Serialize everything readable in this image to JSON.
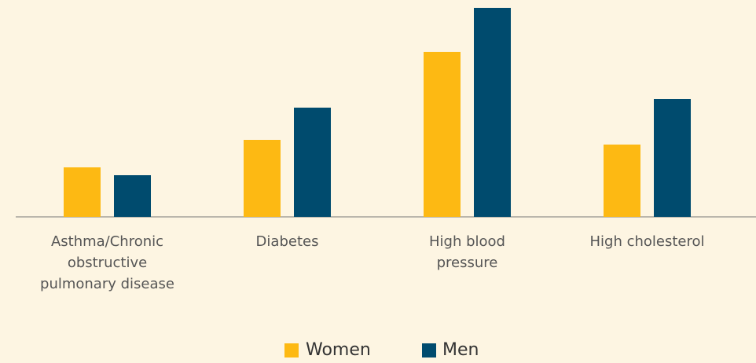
{
  "chart_data": {
    "type": "bar",
    "categories": [
      "Asthma/Chronic obstructive pulmonary disease",
      "Diabetes",
      "High blood pressure",
      "High cholesterol"
    ],
    "series": [
      {
        "name": "Women",
        "color": "#fdb913",
        "values": [
          63,
          98,
          210,
          92
        ]
      },
      {
        "name": "Men",
        "color": "#004b6e",
        "values": [
          53,
          139,
          266,
          150
        ]
      }
    ],
    "ylim": [
      0,
      270
    ],
    "legend": "bottom"
  }
}
